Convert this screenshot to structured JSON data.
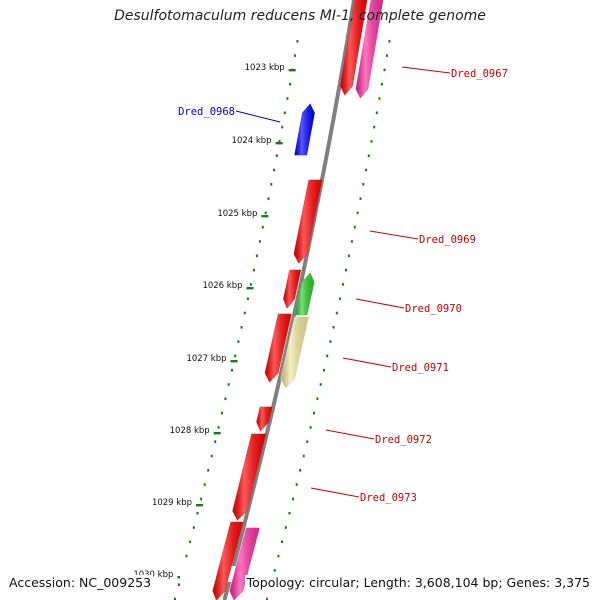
{
  "header": {
    "title": "Desulfotomaculum reducens MI-1, complete genome"
  },
  "footer": {
    "accession": "Accession: NC_009253",
    "topology": "Topology: circular; Length: 3,608,104 bp; Genes: 3,375"
  },
  "colors": {
    "backbone": "#808080",
    "tick": "#1a7a1a",
    "gene_red": "#ff0000",
    "gene_pink": "#ff2fa0",
    "gene_blue": "#0000ff",
    "gene_green": "#2ecc2e",
    "gene_khaki": "#f4eaa0",
    "label_red": "#cc0000",
    "label_blue": "#0000cc"
  },
  "ticks": [
    {
      "label": "1023 kbp"
    },
    {
      "label": "1024 kbp"
    },
    {
      "label": "1025 kbp"
    },
    {
      "label": "1026 kbp"
    },
    {
      "label": "1027 kbp"
    },
    {
      "label": "1028 kbp"
    },
    {
      "label": "1029 kbp"
    },
    {
      "label": "1030 kbp"
    }
  ],
  "genes": [
    {
      "name": "Dred_0967",
      "color": "gene_red"
    },
    {
      "name": "Dred_0967 (pair)",
      "color": "gene_pink"
    },
    {
      "name": "Dred_0968",
      "color": "gene_blue"
    },
    {
      "name": "Dred_0969",
      "color": "gene_red"
    },
    {
      "name": "Dred_0970",
      "color": "gene_green"
    },
    {
      "name": "Dred_0970 (pair)",
      "color": "gene_red"
    },
    {
      "name": "Dred_0971",
      "color": "gene_khaki"
    },
    {
      "name": "Dred_0971 (pair)",
      "color": "gene_red"
    },
    {
      "name": "Dred_0972",
      "color": "gene_red"
    },
    {
      "name": "Dred_0973",
      "color": "gene_red"
    },
    {
      "name": "unlabeled-1",
      "color": "gene_pink"
    },
    {
      "name": "unlabeled-2",
      "color": "gene_red"
    }
  ],
  "labels": [
    {
      "text": "Dred_0967",
      "color": "label_red"
    },
    {
      "text": "Dred_0968",
      "color": "label_blue"
    },
    {
      "text": "Dred_0969",
      "color": "label_red"
    },
    {
      "text": "Dred_0970",
      "color": "label_red"
    },
    {
      "text": "Dred_0971",
      "color": "label_red"
    },
    {
      "text": "Dred_0972",
      "color": "label_red"
    },
    {
      "text": "Dred_0973",
      "color": "label_red"
    }
  ]
}
